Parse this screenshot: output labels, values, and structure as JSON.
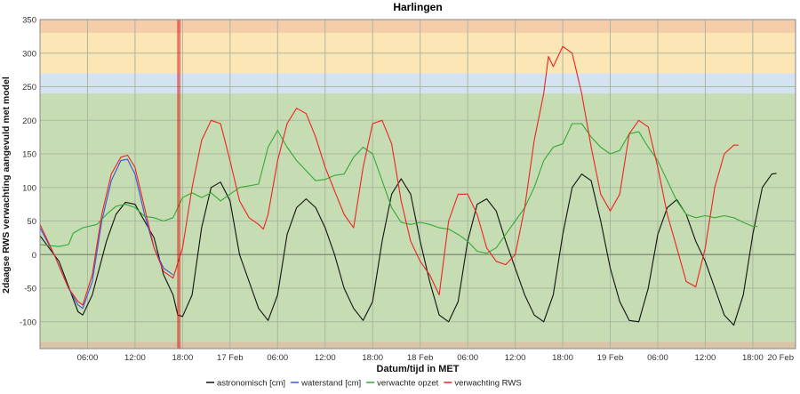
{
  "chart_data": {
    "type": "line",
    "title": "Harlingen",
    "xlabel": "Datum/tijd in MET",
    "ylabel": "2daagse RWS verwachting aangevuld met model",
    "ylim": [
      -140,
      350
    ],
    "xlim_hours": [
      0,
      79.5
    ],
    "yticks": [
      -100,
      -50,
      0,
      50,
      100,
      150,
      200,
      250,
      300,
      350
    ],
    "x_ticks": [
      {
        "h": 5,
        "label": "06:00"
      },
      {
        "h": 10,
        "label": "12:00"
      },
      {
        "h": 15,
        "label": "18:00"
      },
      {
        "h": 20,
        "label": "17 Feb"
      },
      {
        "h": 25,
        "label": "06:00"
      },
      {
        "h": 30,
        "label": "12:00"
      },
      {
        "h": 35,
        "label": "18:00"
      },
      {
        "h": 40,
        "label": "18 Feb"
      },
      {
        "h": 45,
        "label": "06:00"
      },
      {
        "h": 50,
        "label": "12:00"
      },
      {
        "h": 55,
        "label": "18:00"
      },
      {
        "h": 60,
        "label": "19 Feb"
      },
      {
        "h": 65,
        "label": "06:00"
      },
      {
        "h": 70,
        "label": "12:00"
      },
      {
        "h": 75,
        "label": "18:00"
      },
      {
        "h": 79.5,
        "label": "20 Feb"
      }
    ],
    "bands": [
      {
        "from": -140,
        "to": -130,
        "color": "#d9c4a8"
      },
      {
        "from": -130,
        "to": 240,
        "color": "#c6dcb3"
      },
      {
        "from": 240,
        "to": 270,
        "color": "#d3e3f2"
      },
      {
        "from": 270,
        "to": 330,
        "color": "#fce6b5"
      },
      {
        "from": 330,
        "to": 350,
        "color": "#f6cda9"
      }
    ],
    "now_marker_hour": 14.6,
    "series": [
      {
        "name": "astronomisch [cm]",
        "color": "#111111",
        "points": [
          [
            0,
            28
          ],
          [
            2,
            -10
          ],
          [
            4,
            -85
          ],
          [
            4.5,
            -90
          ],
          [
            5.5,
            -60
          ],
          [
            7,
            20
          ],
          [
            8,
            60
          ],
          [
            9,
            78
          ],
          [
            10,
            75
          ],
          [
            11,
            50
          ],
          [
            12,
            25
          ],
          [
            13,
            -30
          ],
          [
            14,
            -60
          ],
          [
            14.5,
            -90
          ],
          [
            15,
            -92
          ],
          [
            16,
            -60
          ],
          [
            17,
            40
          ],
          [
            18,
            100
          ],
          [
            19,
            108
          ],
          [
            20,
            80
          ],
          [
            21,
            0
          ],
          [
            22,
            -40
          ],
          [
            23,
            -80
          ],
          [
            24,
            -98
          ],
          [
            25,
            -60
          ],
          [
            26,
            30
          ],
          [
            27,
            70
          ],
          [
            28,
            83
          ],
          [
            29,
            70
          ],
          [
            30,
            40
          ],
          [
            31,
            0
          ],
          [
            32,
            -50
          ],
          [
            33,
            -80
          ],
          [
            34,
            -98
          ],
          [
            35,
            -70
          ],
          [
            36,
            20
          ],
          [
            37,
            90
          ],
          [
            38,
            113
          ],
          [
            39,
            90
          ],
          [
            40,
            20
          ],
          [
            41,
            -40
          ],
          [
            42,
            -90
          ],
          [
            43,
            -100
          ],
          [
            44,
            -70
          ],
          [
            45,
            20
          ],
          [
            46,
            75
          ],
          [
            47,
            83
          ],
          [
            48,
            65
          ],
          [
            49,
            20
          ],
          [
            50,
            -20
          ],
          [
            51,
            -60
          ],
          [
            52,
            -90
          ],
          [
            53,
            -100
          ],
          [
            54,
            -60
          ],
          [
            55,
            30
          ],
          [
            56,
            100
          ],
          [
            57,
            120
          ],
          [
            58,
            110
          ],
          [
            59,
            50
          ],
          [
            60,
            -20
          ],
          [
            61,
            -70
          ],
          [
            62,
            -98
          ],
          [
            63,
            -100
          ],
          [
            64,
            -50
          ],
          [
            65,
            30
          ],
          [
            66,
            70
          ],
          [
            67,
            82
          ],
          [
            68,
            60
          ],
          [
            69,
            20
          ],
          [
            70,
            -10
          ],
          [
            71,
            -50
          ],
          [
            72,
            -90
          ],
          [
            73,
            -105
          ],
          [
            74,
            -60
          ],
          [
            75,
            30
          ],
          [
            76,
            100
          ],
          [
            77,
            120
          ],
          [
            77.5,
            121
          ]
        ]
      },
      {
        "name": "waterstand [cm]",
        "color": "#3355dd",
        "points": [
          [
            0,
            40
          ],
          [
            1.5,
            0
          ],
          [
            3,
            -50
          ],
          [
            4,
            -75
          ],
          [
            4.5,
            -80
          ],
          [
            5.5,
            -40
          ],
          [
            6.5,
            50
          ],
          [
            7.5,
            110
          ],
          [
            8.5,
            140
          ],
          [
            9.2,
            142
          ],
          [
            10,
            120
          ],
          [
            11,
            60
          ],
          [
            12,
            10
          ],
          [
            13,
            -20
          ],
          [
            14,
            -30
          ]
        ]
      },
      {
        "name": "verwachte opzet",
        "color": "#33aa33",
        "points": [
          [
            0,
            15
          ],
          [
            2,
            12
          ],
          [
            3,
            15
          ],
          [
            3.5,
            32
          ],
          [
            4.5,
            40
          ],
          [
            6,
            45
          ],
          [
            7,
            60
          ],
          [
            8,
            72
          ],
          [
            9,
            75
          ],
          [
            10,
            70
          ],
          [
            11,
            57
          ],
          [
            12,
            55
          ],
          [
            13,
            50
          ],
          [
            14,
            55
          ],
          [
            15,
            85
          ],
          [
            16,
            92
          ],
          [
            17,
            85
          ],
          [
            18,
            92
          ],
          [
            19,
            80
          ],
          [
            20,
            90
          ],
          [
            21,
            100
          ],
          [
            23,
            105
          ],
          [
            24,
            160
          ],
          [
            25,
            185
          ],
          [
            26,
            160
          ],
          [
            27,
            140
          ],
          [
            28,
            125
          ],
          [
            29,
            110
          ],
          [
            30,
            112
          ],
          [
            31,
            118
          ],
          [
            32,
            120
          ],
          [
            33,
            145
          ],
          [
            34,
            160
          ],
          [
            35,
            150
          ],
          [
            36,
            110
          ],
          [
            37,
            70
          ],
          [
            38,
            48
          ],
          [
            39,
            45
          ],
          [
            40,
            48
          ],
          [
            41,
            45
          ],
          [
            42,
            40
          ],
          [
            43,
            38
          ],
          [
            44,
            30
          ],
          [
            45,
            20
          ],
          [
            46,
            5
          ],
          [
            47,
            2
          ],
          [
            48,
            10
          ],
          [
            49,
            30
          ],
          [
            50,
            50
          ],
          [
            51,
            70
          ],
          [
            52,
            100
          ],
          [
            53,
            140
          ],
          [
            54,
            160
          ],
          [
            55,
            165
          ],
          [
            56,
            195
          ],
          [
            57,
            195
          ],
          [
            58,
            175
          ],
          [
            59,
            160
          ],
          [
            60,
            150
          ],
          [
            61,
            155
          ],
          [
            62,
            180
          ],
          [
            63,
            183
          ],
          [
            64,
            160
          ],
          [
            65,
            140
          ],
          [
            66,
            110
          ],
          [
            67,
            80
          ],
          [
            68,
            60
          ],
          [
            69,
            55
          ],
          [
            70,
            58
          ],
          [
            71,
            55
          ],
          [
            72,
            58
          ],
          [
            73,
            55
          ],
          [
            74,
            48
          ],
          [
            75,
            42
          ],
          [
            75.5,
            42
          ]
        ]
      },
      {
        "name": "verwachting RWS",
        "color": "#ee2222",
        "points": [
          [
            0,
            45
          ],
          [
            1.5,
            0
          ],
          [
            3,
            -50
          ],
          [
            4,
            -70
          ],
          [
            4.5,
            -75
          ],
          [
            5.5,
            -30
          ],
          [
            6.5,
            60
          ],
          [
            7.5,
            120
          ],
          [
            8.5,
            145
          ],
          [
            9.2,
            148
          ],
          [
            10,
            130
          ],
          [
            11,
            70
          ],
          [
            12,
            10
          ],
          [
            13,
            -25
          ],
          [
            14,
            -35
          ],
          [
            15,
            10
          ],
          [
            16,
            100
          ],
          [
            17,
            170
          ],
          [
            18,
            200
          ],
          [
            19,
            195
          ],
          [
            20,
            140
          ],
          [
            21,
            80
          ],
          [
            22,
            55
          ],
          [
            23,
            45
          ],
          [
            23.5,
            38
          ],
          [
            24,
            60
          ],
          [
            25,
            140
          ],
          [
            26,
            195
          ],
          [
            27,
            218
          ],
          [
            28,
            210
          ],
          [
            29,
            175
          ],
          [
            30,
            130
          ],
          [
            31,
            95
          ],
          [
            32,
            60
          ],
          [
            33,
            40
          ],
          [
            34,
            130
          ],
          [
            35,
            195
          ],
          [
            36,
            200
          ],
          [
            37,
            165
          ],
          [
            38,
            80
          ],
          [
            39,
            20
          ],
          [
            40,
            -10
          ],
          [
            41,
            -30
          ],
          [
            42,
            -60
          ],
          [
            43,
            50
          ],
          [
            44,
            90
          ],
          [
            45,
            90
          ],
          [
            46,
            60
          ],
          [
            47,
            10
          ],
          [
            48,
            -10
          ],
          [
            49,
            -15
          ],
          [
            50,
            0
          ],
          [
            51,
            70
          ],
          [
            52,
            170
          ],
          [
            53,
            240
          ],
          [
            53.5,
            295
          ],
          [
            54,
            280
          ],
          [
            55,
            310
          ],
          [
            56,
            300
          ],
          [
            57,
            240
          ],
          [
            58,
            160
          ],
          [
            59,
            90
          ],
          [
            60,
            65
          ],
          [
            61,
            90
          ],
          [
            62,
            180
          ],
          [
            63,
            200
          ],
          [
            64,
            190
          ],
          [
            65,
            130
          ],
          [
            66,
            60
          ],
          [
            67,
            10
          ],
          [
            68,
            -40
          ],
          [
            69,
            -48
          ],
          [
            70,
            10
          ],
          [
            71,
            100
          ],
          [
            72,
            150
          ],
          [
            73,
            163
          ],
          [
            73.5,
            163
          ]
        ]
      }
    ]
  }
}
